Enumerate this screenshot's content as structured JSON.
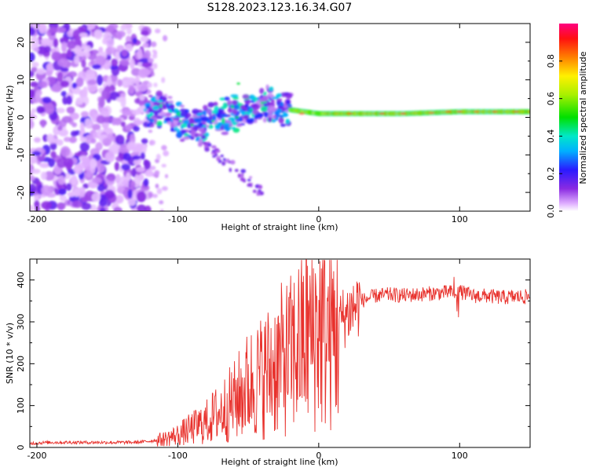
{
  "title": "S128.2023.123.16.34.G07",
  "chart_data": [
    {
      "type": "heatmap",
      "xlabel": "Height of straight line (km)",
      "ylabel": "Frequency (Hz)",
      "xlim": [
        -205,
        150
      ],
      "ylim": [
        -25,
        25
      ],
      "xticks": [
        -200,
        -100,
        0,
        100
      ],
      "yticks": [
        -20,
        -10,
        0,
        10,
        20
      ],
      "colorbar": {
        "label": "Normalized spectral amplitude",
        "range": [
          0,
          1
        ],
        "ticks": [
          "0.0",
          "0.2",
          "0.4",
          "0.6",
          "0.8"
        ]
      },
      "ridge": [
        {
          "x": -120,
          "y": 2
        },
        {
          "x": -110,
          "y": 2
        },
        {
          "x": -100,
          "y": -1
        },
        {
          "x": -95,
          "y": -2
        },
        {
          "x": -85,
          "y": -2
        },
        {
          "x": -70,
          "y": 0
        },
        {
          "x": -60,
          "y": 1
        },
        {
          "x": -50,
          "y": 2
        },
        {
          "x": -40,
          "y": 4
        },
        {
          "x": -30,
          "y": 3
        },
        {
          "x": -20,
          "y": 2
        },
        {
          "x": 0,
          "y": 1
        },
        {
          "x": 20,
          "y": 1
        },
        {
          "x": 60,
          "y": 1
        },
        {
          "x": 100,
          "y": 1.5
        },
        {
          "x": 150,
          "y": 1.5
        }
      ]
    },
    {
      "type": "line",
      "xlabel": "Height of straight line (km)",
      "ylabel": "SNR (10 * v/v)",
      "xlim": [
        -205,
        150
      ],
      "ylim": [
        0,
        450
      ],
      "xticks": [
        -200,
        -100,
        0,
        100
      ],
      "yticks": [
        0,
        100,
        200,
        300,
        400
      ],
      "color": "#e8312c",
      "series": [
        {
          "x": [
            -205,
            -190,
            -170,
            -150,
            -130,
            -120,
            -110,
            -100,
            -90,
            -80,
            -70,
            -60,
            -50,
            -40,
            -30,
            -20,
            -10,
            0,
            10,
            15,
            20,
            30,
            40,
            50,
            60,
            70,
            80,
            90,
            100,
            110,
            120,
            130,
            140,
            150
          ],
          "values": [
            10,
            12,
            12,
            12,
            12,
            15,
            20,
            30,
            45,
            60,
            85,
            110,
            150,
            170,
            200,
            220,
            260,
            290,
            270,
            300,
            320,
            350,
            362,
            365,
            363,
            365,
            368,
            370,
            372,
            362,
            362,
            358,
            360,
            360
          ]
        }
      ]
    }
  ]
}
